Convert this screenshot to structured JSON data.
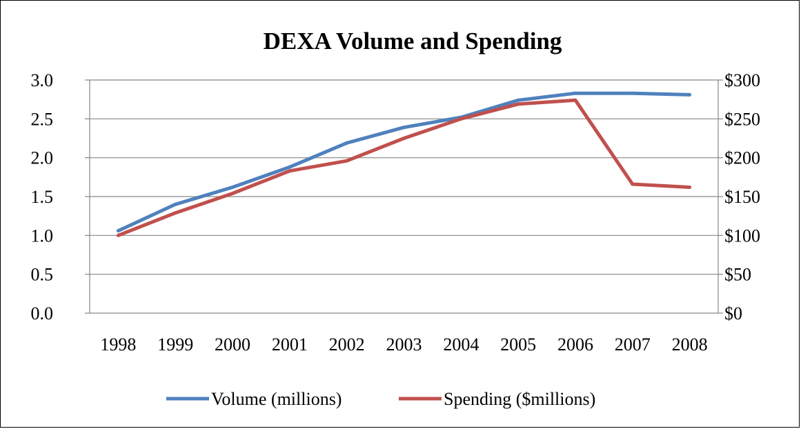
{
  "chart_data": {
    "type": "line",
    "title": "DEXA Volume and Spending",
    "xlabel": "",
    "ylabel": "",
    "categories": [
      "1998",
      "1999",
      "2000",
      "2001",
      "2002",
      "2003",
      "2004",
      "2005",
      "2006",
      "2007",
      "2008"
    ],
    "series": [
      {
        "name": "Volume (millions)",
        "axis": "left",
        "color": "#4f81bd",
        "values": [
          1.06,
          1.4,
          1.62,
          1.88,
          2.19,
          2.39,
          2.52,
          2.74,
          2.83,
          2.83,
          2.81
        ]
      },
      {
        "name": "Spending ($millions)",
        "axis": "right",
        "color": "#c0504d",
        "values": [
          100,
          129,
          154,
          183,
          196,
          225,
          250,
          269,
          274,
          166,
          162
        ]
      }
    ],
    "ylim": [
      0,
      3.0
    ],
    "y_ticks": [
      "0.0",
      "0.5",
      "1.0",
      "1.5",
      "2.0",
      "2.5",
      "3.0"
    ],
    "y2lim": [
      0,
      300
    ],
    "y2_ticks": [
      "$0",
      "$50",
      "$100",
      "$150",
      "$200",
      "$250",
      "$300"
    ],
    "grid": true,
    "legend_position": "bottom"
  }
}
